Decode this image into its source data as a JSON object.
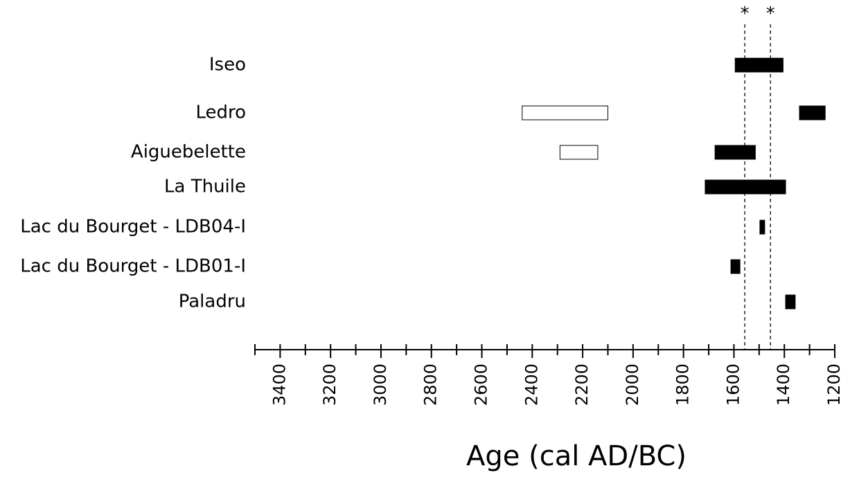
{
  "chart_data": {
    "type": "range-bar",
    "categories": [
      "Iseo",
      "Ledro",
      "Aiguebelette",
      "La Thuile",
      "Lac du Bourget - LDB04-I",
      "Lac du Bourget - LDB01-I",
      "Paladru"
    ],
    "series": [
      {
        "color": "#000000",
        "starts": [
          1595,
          1340,
          1675,
          1714,
          1497,
          1612,
          1395
        ],
        "ends": [
          1405,
          1238,
          1515,
          1395,
          1478,
          1576,
          1357
        ]
      },
      {
        "color": "#ffffff",
        "starts": [
          null,
          2440,
          2290,
          null,
          null,
          null,
          null
        ],
        "ends": [
          null,
          2100,
          2140,
          null,
          null,
          null,
          null
        ]
      }
    ],
    "reference_lines": [
      {
        "value": 1557,
        "label": "*"
      },
      {
        "value": 1455,
        "label": "*"
      }
    ],
    "xlim": [
      3500,
      1200
    ],
    "xticks": [
      3400,
      3200,
      3000,
      2800,
      2600,
      2400,
      2200,
      2000,
      1800,
      1600,
      1400,
      1200
    ],
    "minor_xticks": [
      3500,
      3300,
      3100,
      2900,
      2700,
      2500,
      2300,
      2100,
      1900,
      1700,
      1500,
      1300
    ],
    "x_label": "Age (cal AD/BC)"
  }
}
